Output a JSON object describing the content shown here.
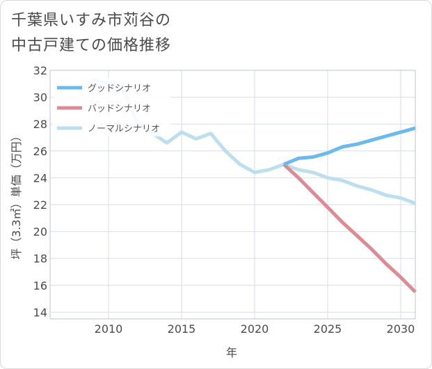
{
  "title_lines": [
    "千葉県いすみ市苅谷の",
    "中古戸建ての価格推移"
  ],
  "chart_data": {
    "type": "line",
    "title": "千葉県いすみ市苅谷の中古戸建ての価格推移",
    "xlabel": "年",
    "ylabel": "坪（3.3㎡）単価（万円）",
    "xlim": [
      2006,
      2031
    ],
    "ylim": [
      13.5,
      32
    ],
    "xticks": [
      2010,
      2015,
      2020,
      2025,
      2030
    ],
    "yticks": [
      14,
      16,
      18,
      20,
      22,
      24,
      26,
      28,
      30,
      32
    ],
    "grid": true,
    "legend_position": "top-left",
    "series": [
      {
        "name": "グッドシナリオ",
        "color": "#6cb9ee",
        "x": [
          2022,
          2023,
          2024,
          2025,
          2026,
          2027,
          2028,
          2029,
          2030,
          2031
        ],
        "y": [
          25.0,
          25.45,
          25.55,
          25.85,
          26.3,
          26.5,
          26.8,
          27.1,
          27.4,
          27.7
        ]
      },
      {
        "name": "バッドシナリオ",
        "color": "#de8a92",
        "x": [
          2022,
          2023,
          2024,
          2025,
          2026,
          2027,
          2028,
          2029,
          2030,
          2031
        ],
        "y": [
          25.0,
          24.0,
          22.9,
          21.8,
          20.7,
          19.7,
          18.7,
          17.6,
          16.6,
          15.5
        ]
      },
      {
        "name": "ノーマルシナリオ",
        "color": "#bcdfee",
        "x": [
          2008,
          2009,
          2010,
          2011,
          2012,
          2013,
          2014,
          2015,
          2016,
          2017,
          2018,
          2019,
          2020,
          2021,
          2022,
          2023,
          2024,
          2025,
          2026,
          2027,
          2028,
          2029,
          2030,
          2031
        ],
        "y": [
          30.5,
          31.3,
          31.0,
          30.6,
          28.0,
          27.3,
          26.6,
          27.4,
          26.9,
          27.3,
          26.0,
          25.0,
          24.4,
          24.6,
          25.0,
          24.6,
          24.4,
          24.0,
          23.8,
          23.4,
          23.1,
          22.7,
          22.5,
          22.1
        ]
      }
    ]
  }
}
